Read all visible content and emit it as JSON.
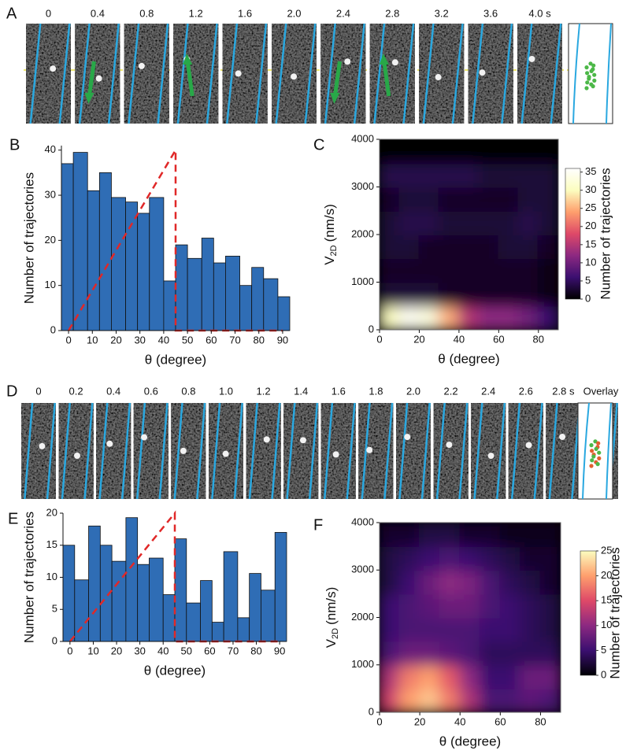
{
  "strips": [
    {
      "panel": "A",
      "labels": [
        "0",
        "0.4",
        "0.8",
        "1.2",
        "1.6",
        "2.0",
        "2.4",
        "2.8",
        "3.2",
        "3.6",
        "4.0 s"
      ]
    },
    {
      "panel": "D",
      "labels": [
        "0",
        "0.2",
        "0.4",
        "0.6",
        "0.8",
        "1.0",
        "1.2",
        "1.4",
        "1.6",
        "1.8",
        "2.0",
        "2.2",
        "2.4",
        "2.6",
        "2.8 s",
        "Overlay"
      ]
    }
  ],
  "chart_data": [
    {
      "type": "histogram",
      "panel": "B",
      "xlabel": "θ (degree)",
      "ylabel": "Number of trajectories",
      "bins": [
        -3,
        2,
        8,
        13,
        18,
        24,
        29,
        34,
        40,
        45,
        50,
        56,
        61,
        66,
        72,
        77,
        82,
        88,
        93
      ],
      "values": [
        37,
        39.5,
        31,
        35,
        29.5,
        28.5,
        26,
        29.5,
        11,
        19,
        16,
        20.5,
        15,
        16.5,
        10,
        14,
        11.5,
        7.5
      ],
      "color": "#2f6db5",
      "xlim": [
        -3,
        93
      ],
      "ylim": [
        0,
        41
      ],
      "xticks": [
        0,
        10,
        20,
        30,
        40,
        50,
        60,
        70,
        80,
        90
      ],
      "yticks": [
        0,
        10,
        20,
        30,
        40
      ],
      "reference_line": {
        "x": [
          0,
          45,
          45,
          90
        ],
        "y": [
          0,
          40,
          0,
          0
        ],
        "color": "#e02828"
      }
    },
    {
      "type": "heatmap",
      "panel": "C",
      "xlabel": "θ (degree)",
      "ylabel": "V",
      "ylabel_sub": "2D",
      "ylabel_unit": "(nm/s)",
      "colorbar_label": "Number of trajectories",
      "x": [
        5,
        15,
        25,
        35,
        45,
        55,
        65,
        75,
        85
      ],
      "y": [
        250,
        750,
        1250,
        1750,
        2250,
        2750,
        3250,
        3750
      ],
      "z": [
        [
          30,
          35,
          33,
          25,
          15,
          12,
          12,
          10,
          6
        ],
        [
          3,
          3,
          3,
          2,
          2,
          2,
          2,
          2,
          1
        ],
        [
          2,
          2,
          2,
          2,
          2,
          2,
          2,
          2,
          1
        ],
        [
          3,
          3,
          2,
          2,
          2,
          2,
          3,
          3,
          2
        ],
        [
          3,
          4,
          4,
          3,
          3,
          3,
          3,
          4,
          3
        ],
        [
          2,
          3,
          3,
          2,
          2,
          2,
          2,
          3,
          3
        ],
        [
          4,
          4,
          4,
          4,
          4,
          3,
          3,
          3,
          3
        ],
        [
          0,
          0,
          0,
          0,
          0,
          0,
          0,
          0,
          0
        ]
      ],
      "xlim": [
        0,
        90
      ],
      "ylim": [
        0,
        4000
      ],
      "xticks": [
        0,
        20,
        40,
        60,
        80
      ],
      "yticks": [
        0,
        1000,
        2000,
        3000,
        4000
      ],
      "clim": [
        0,
        36
      ],
      "cticks": [
        0,
        5,
        10,
        15,
        20,
        25,
        30,
        35
      ],
      "colorscale": [
        "#000000",
        "#3b0f70",
        "#8c2981",
        "#de4968",
        "#fe9f6d",
        "#fcfdbf",
        "#ffffff"
      ]
    },
    {
      "type": "histogram",
      "panel": "E",
      "xlabel": "θ (degree)",
      "ylabel": "Number of trajectories",
      "bins": [
        -3,
        2,
        8,
        13,
        18,
        24,
        29,
        34,
        40,
        45,
        50,
        56,
        61,
        66,
        72,
        77,
        82,
        88,
        93
      ],
      "values": [
        15,
        9.6,
        18,
        15,
        12.5,
        19.3,
        12,
        13,
        7.3,
        16,
        6,
        9.5,
        3,
        14,
        3.7,
        10.6,
        8,
        17
      ],
      "color": "#2f6db5",
      "xlim": [
        -3,
        93
      ],
      "ylim": [
        0,
        20
      ],
      "xticks": [
        0,
        10,
        20,
        30,
        40,
        50,
        60,
        70,
        80,
        90
      ],
      "yticks": [
        0,
        5,
        10,
        15,
        20
      ],
      "reference_line": {
        "x": [
          0,
          45,
          45,
          90
        ],
        "y": [
          0,
          20,
          0,
          0
        ],
        "color": "#e02828"
      }
    },
    {
      "type": "heatmap",
      "panel": "F",
      "xlabel": "θ (degree)",
      "ylabel": "V",
      "ylabel_sub": "2D",
      "ylabel_unit": "(nm/s)",
      "colorbar_label": "Number of trajectories",
      "x": [
        5,
        15,
        25,
        35,
        45,
        55,
        65,
        75,
        85
      ],
      "y": [
        250,
        750,
        1250,
        1750,
        2250,
        2750,
        3250,
        3750
      ],
      "z": [
        [
          14,
          20,
          22,
          18,
          12,
          6,
          6,
          7,
          6
        ],
        [
          12,
          18,
          20,
          16,
          10,
          5,
          5,
          8,
          8
        ],
        [
          6,
          8,
          8,
          7,
          6,
          4,
          4,
          4,
          4
        ],
        [
          5,
          6,
          6,
          6,
          6,
          5,
          5,
          4,
          3
        ],
        [
          5,
          6,
          7,
          8,
          8,
          6,
          5,
          4,
          3
        ],
        [
          3,
          5,
          8,
          10,
          9,
          6,
          4,
          3,
          2
        ],
        [
          3,
          4,
          5,
          6,
          5,
          4,
          3,
          2,
          2
        ],
        [
          2,
          2,
          3,
          3,
          2,
          2,
          1,
          1,
          1
        ]
      ],
      "xlim": [
        0,
        90
      ],
      "ylim": [
        0,
        4000
      ],
      "xticks": [
        0,
        20,
        40,
        60,
        80
      ],
      "yticks": [
        0,
        1000,
        2000,
        3000,
        4000
      ],
      "clim": [
        0,
        25
      ],
      "cticks": [
        0,
        5,
        10,
        15,
        20,
        25
      ],
      "colorscale": [
        "#000004",
        "#3b0f70",
        "#8c2981",
        "#de4968",
        "#fe9f6d",
        "#fcfdbf"
      ]
    }
  ]
}
